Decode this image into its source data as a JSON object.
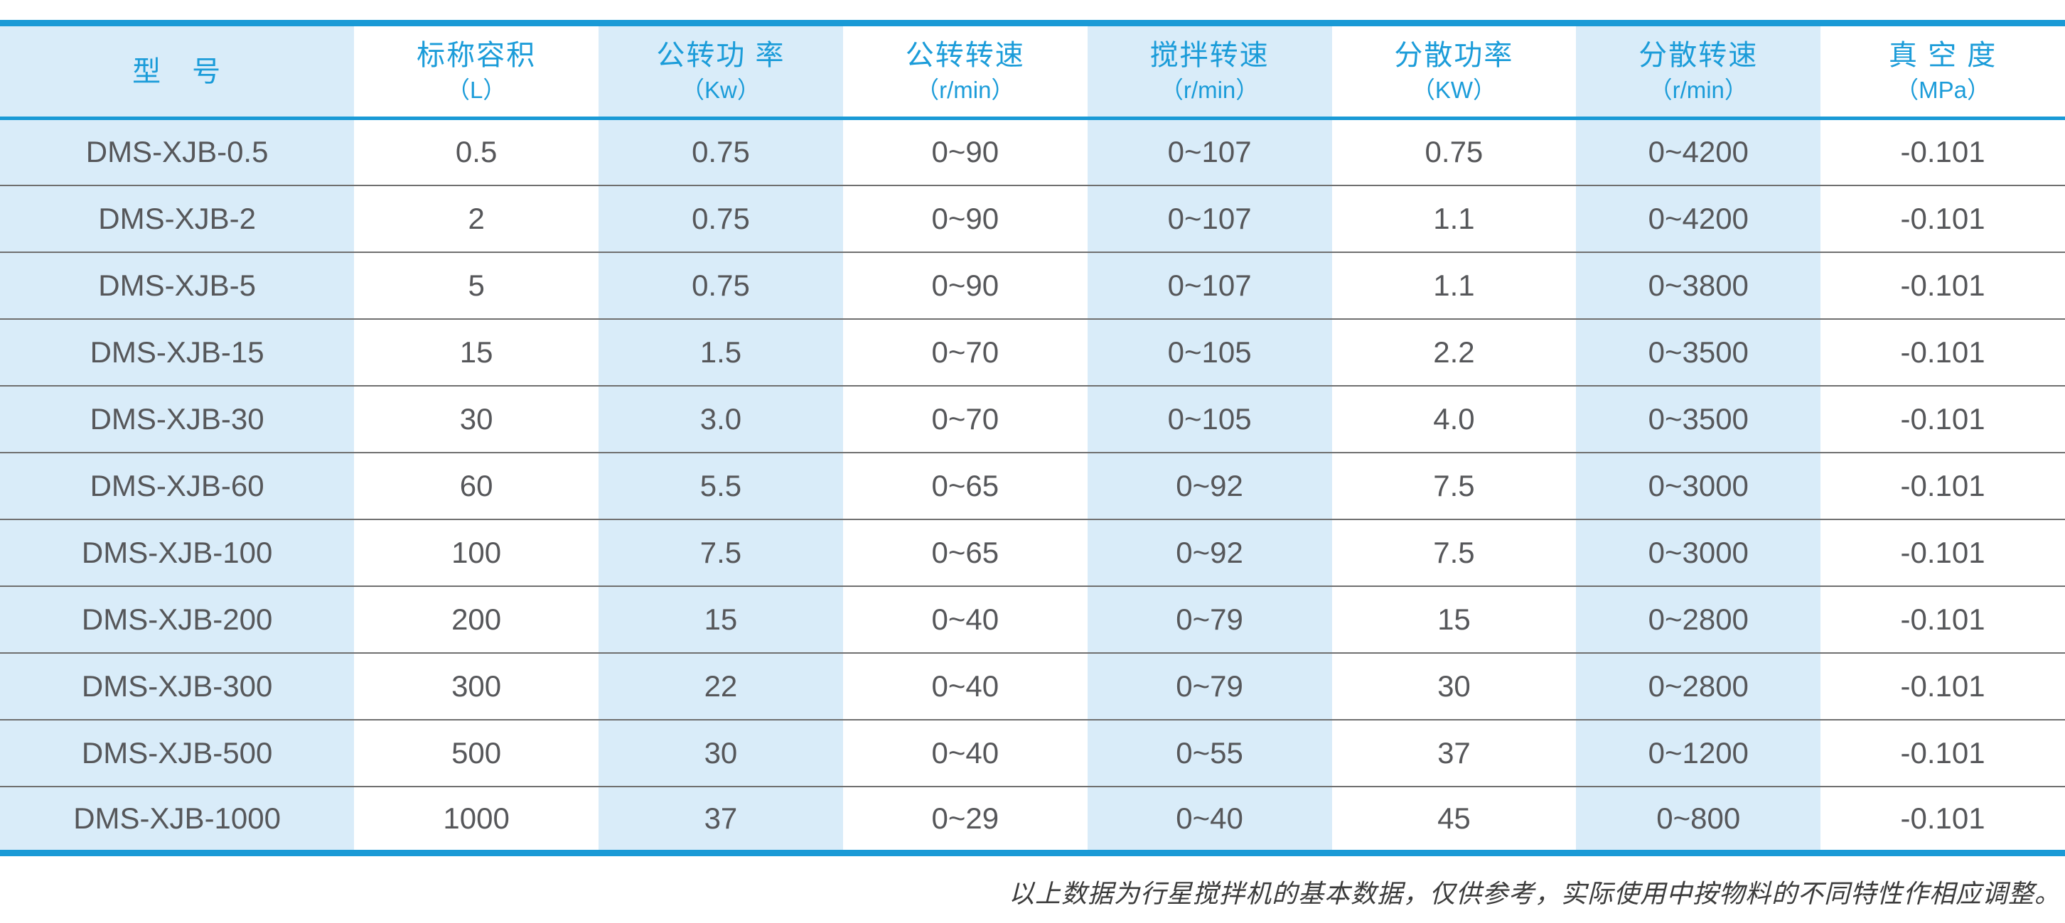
{
  "colors": {
    "accent": "#1a9ad6",
    "band_bg": "#d9ecf9",
    "header_text": "#1b9cd9",
    "body_text": "#56575a",
    "separator": "#6f6f6f",
    "footer_text": "#3b3b3b"
  },
  "table": {
    "columns": [
      {
        "title": "型　号",
        "unit": ""
      },
      {
        "title": "标称容积",
        "unit": "（L）"
      },
      {
        "title": "公转功 率",
        "unit": "（Kw）"
      },
      {
        "title": "公转转速",
        "unit": "（r/min）"
      },
      {
        "title": "搅拌转速",
        "unit": "（r/min）"
      },
      {
        "title": "分散功率",
        "unit": "（KW）"
      },
      {
        "title": "分散转速",
        "unit": "（r/min）"
      },
      {
        "title": "真 空 度",
        "unit": "（MPa）"
      }
    ],
    "rows": [
      [
        "DMS-XJB-0.5",
        "0.5",
        "0.75",
        "0~90",
        "0~107",
        "0.75",
        "0~4200",
        "-0.101"
      ],
      [
        "DMS-XJB-2",
        "2",
        "0.75",
        "0~90",
        "0~107",
        "1.1",
        "0~4200",
        "-0.101"
      ],
      [
        "DMS-XJB-5",
        "5",
        "0.75",
        "0~90",
        "0~107",
        "1.1",
        "0~3800",
        "-0.101"
      ],
      [
        "DMS-XJB-15",
        "15",
        "1.5",
        "0~70",
        "0~105",
        "2.2",
        "0~3500",
        "-0.101"
      ],
      [
        "DMS-XJB-30",
        "30",
        "3.0",
        "0~70",
        "0~105",
        "4.0",
        "0~3500",
        "-0.101"
      ],
      [
        "DMS-XJB-60",
        "60",
        "5.5",
        "0~65",
        "0~92",
        "7.5",
        "0~3000",
        "-0.101"
      ],
      [
        "DMS-XJB-100",
        "100",
        "7.5",
        "0~65",
        "0~92",
        "7.5",
        "0~3000",
        "-0.101"
      ],
      [
        "DMS-XJB-200",
        "200",
        "15",
        "0~40",
        "0~79",
        "15",
        "0~2800",
        "-0.101"
      ],
      [
        "DMS-XJB-300",
        "300",
        "22",
        "0~40",
        "0~79",
        "30",
        "0~2800",
        "-0.101"
      ],
      [
        "DMS-XJB-500",
        "500",
        "30",
        "0~40",
        "0~55",
        "37",
        "0~1200",
        "-0.101"
      ],
      [
        "DMS-XJB-1000",
        "1000",
        "37",
        "0~29",
        "0~40",
        "45",
        "0~800",
        "-0.101"
      ]
    ]
  },
  "footer": {
    "note": "以上数据为行星搅拌机的基本数据，仅供参考，实际使用中按物料的不同特性作相应调整。"
  }
}
